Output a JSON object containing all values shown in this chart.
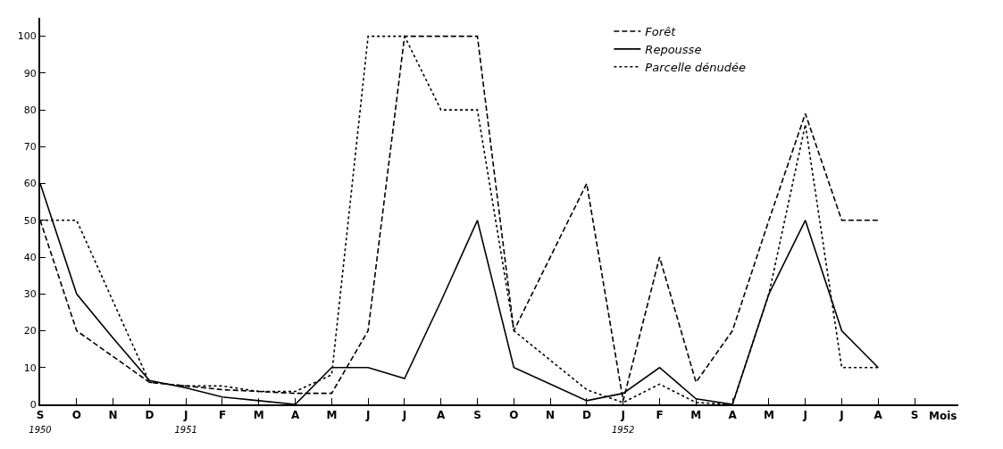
{
  "chart_data": {
    "type": "line",
    "xlabel": "Mois",
    "categories": [
      "S\n1950",
      "O",
      "N",
      "D",
      "J\n1951",
      "F",
      "M",
      "A",
      "M",
      "J",
      "J",
      "A",
      "S",
      "O",
      "N",
      "D",
      "J\n1952",
      "F",
      "M",
      "A",
      "M",
      "J",
      "J",
      "A",
      "S"
    ],
    "series": [
      {
        "name": "Forêt",
        "color": "#000000",
        "line_style": "dashed",
        "values": [
          50,
          20,
          13,
          6,
          5,
          4,
          3.5,
          3,
          3,
          20,
          100,
          100,
          100,
          20,
          40,
          60,
          1,
          40,
          6,
          20,
          50,
          79,
          50,
          50,
          null
        ]
      },
      {
        "name": "Repousse",
        "color": "#000000",
        "line_style": "solid",
        "values": [
          60,
          30,
          18,
          6.5,
          4.5,
          2,
          1,
          0,
          10,
          10,
          7,
          28,
          50,
          10,
          5.5,
          1,
          3,
          10,
          1.5,
          0,
          30,
          50,
          20,
          10,
          null
        ]
      },
      {
        "name": "Parcelle dénudée",
        "color": "#000000",
        "line_style": "dotted",
        "values": [
          50,
          50,
          28,
          6,
          5,
          5,
          3.5,
          3.5,
          8,
          100,
          100,
          80,
          80,
          20,
          12,
          4,
          0.5,
          5.5,
          0.5,
          0,
          30,
          76,
          10,
          10,
          null
        ]
      }
    ],
    "ylim": [
      0,
      105
    ],
    "yticks": [
      0,
      10,
      20,
      30,
      40,
      50,
      60,
      70,
      80,
      90,
      100
    ],
    "legend": "top right",
    "marker": "none"
  }
}
